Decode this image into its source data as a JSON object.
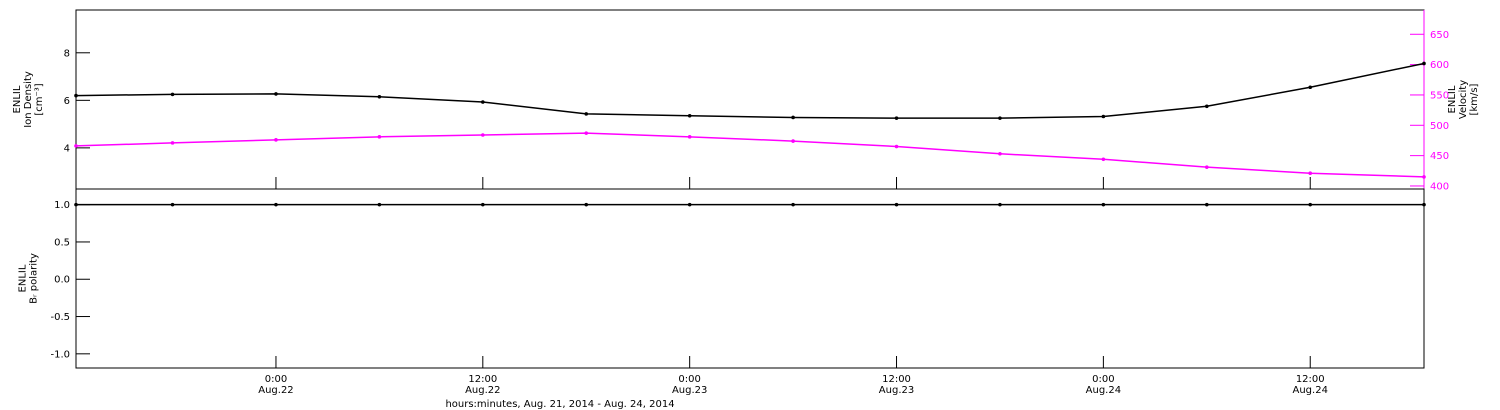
{
  "chart_data": [
    {
      "type": "line",
      "x": [
        12.4,
        18,
        24,
        30,
        36,
        42,
        48,
        54,
        60,
        66,
        72,
        78,
        84,
        90.6
      ],
      "xlim": [
        12.4,
        90.6
      ],
      "series": [
        {
          "color": "#000000",
          "values": [
            6.2,
            6.25,
            6.27,
            6.15,
            5.93,
            5.43,
            5.35,
            5.28,
            5.25,
            5.25,
            5.32,
            5.75,
            6.55,
            7.55
          ]
        },
        {
          "color": "#ff00ff",
          "axis": "y2",
          "values": [
            466,
            471,
            476,
            481,
            484,
            487,
            481,
            474,
            465,
            453,
            444,
            431,
            421,
            415
          ]
        }
      ],
      "ylim": [
        2.27,
        9.8
      ],
      "yticks": [
        4,
        6,
        8
      ],
      "y2lim": [
        395,
        690
      ],
      "y2ticks": [
        400,
        450,
        500,
        550,
        600,
        650
      ],
      "ylabel": [
        "ENLIL",
        "Ion Density",
        "[cm⁻³]"
      ],
      "y2label": [
        "ENLIL",
        "Velocity",
        "[km/s]"
      ],
      "y2color": "#ff00ff"
    },
    {
      "type": "line",
      "x": [
        12.4,
        18,
        24,
        30,
        36,
        42,
        48,
        54,
        60,
        66,
        72,
        78,
        84,
        90.6
      ],
      "xlim": [
        12.4,
        90.6
      ],
      "xticks": [
        {
          "value": 24,
          "label": "0:00 Aug.22"
        },
        {
          "value": 36,
          "label": "12:00 Aug.22"
        },
        {
          "value": 48,
          "label": "0:00 Aug.23"
        },
        {
          "value": 60,
          "label": "12:00 Aug.23"
        },
        {
          "value": 72,
          "label": "0:00 Aug.24"
        },
        {
          "value": 84,
          "label": "12:00 Aug.24"
        }
      ],
      "series": [
        {
          "color": "#000000",
          "values": [
            1,
            1,
            1,
            1,
            1,
            1,
            1,
            1,
            1,
            1,
            1,
            1,
            1,
            1
          ]
        }
      ],
      "ylim": [
        -1.19,
        1.21
      ],
      "yticks": [
        {
          "value": 1,
          "label": "1.0"
        },
        0.5,
        {
          "value": 0,
          "label": "0.0"
        },
        -0.5,
        {
          "value": -1,
          "label": "-1.0"
        }
      ],
      "ylabel": [
        "ENLIL",
        "Bᵣ polarity"
      ],
      "xlabel": "hours:minutes, Aug. 21, 2014 - Aug. 24, 2014"
    }
  ]
}
